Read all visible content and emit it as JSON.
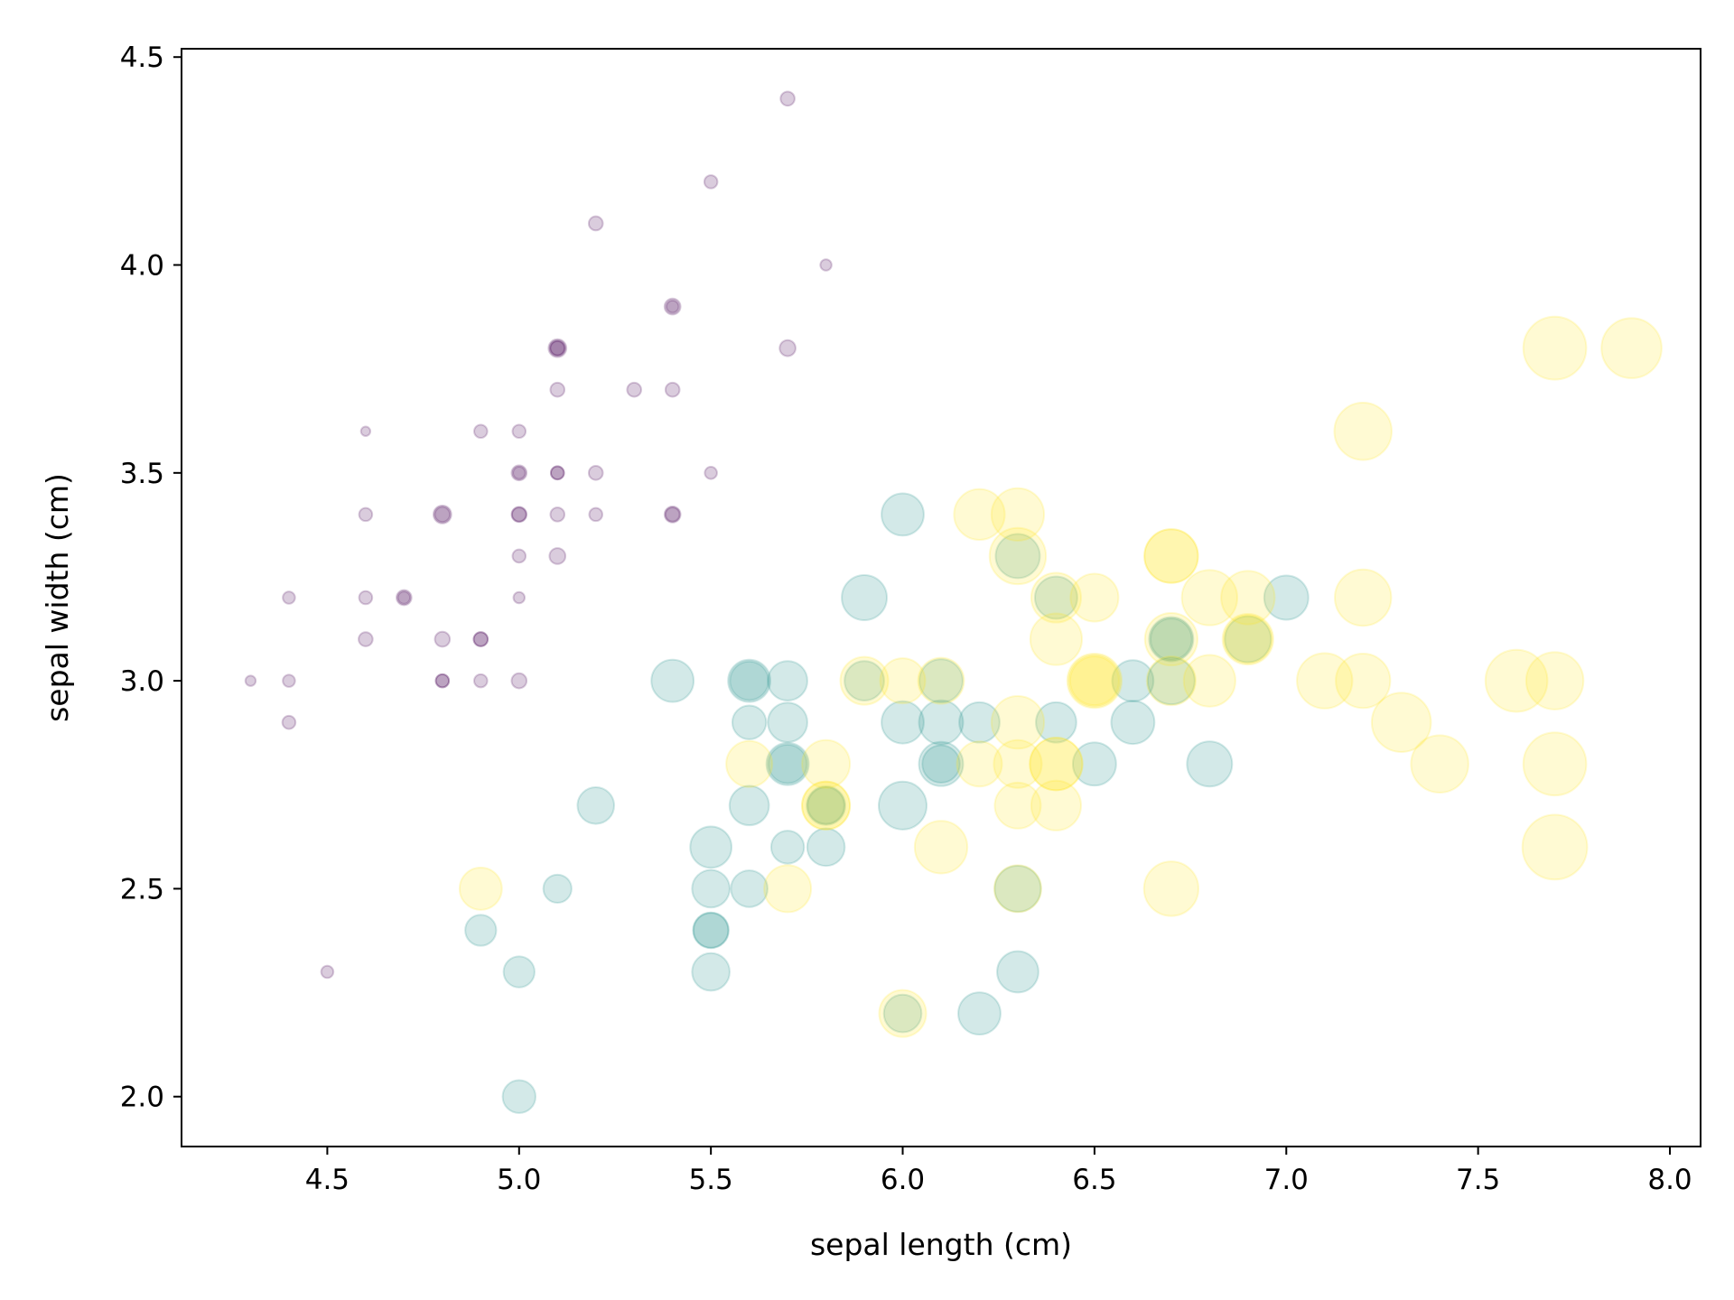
{
  "chart_data": {
    "type": "scatter",
    "title": "",
    "xlabel": "sepal length (cm)",
    "ylabel": "sepal width (cm)",
    "xlim": [
      4.12,
      8.08
    ],
    "ylim": [
      1.88,
      4.52
    ],
    "xticks": [
      "4.5",
      "5.0",
      "5.5",
      "6.0",
      "6.5",
      "7.0",
      "7.5",
      "8.0"
    ],
    "yticks": [
      "2.0",
      "2.5",
      "3.0",
      "3.5",
      "4.0",
      "4.5"
    ],
    "grid": false,
    "legend": "none",
    "marker_alpha": 0.2,
    "size_encoding": "petal length (cm)",
    "color_encoding": "species (viridis)",
    "series": [
      {
        "color": "#440154",
        "points": [
          [
            5.1,
            3.5,
            1.4
          ],
          [
            4.9,
            3.0,
            1.4
          ],
          [
            4.7,
            3.2,
            1.3
          ],
          [
            4.6,
            3.1,
            1.5
          ],
          [
            5.0,
            3.6,
            1.4
          ],
          [
            5.4,
            3.9,
            1.7
          ],
          [
            4.6,
            3.4,
            1.4
          ],
          [
            5.0,
            3.4,
            1.5
          ],
          [
            4.4,
            2.9,
            1.4
          ],
          [
            4.9,
            3.1,
            1.5
          ],
          [
            5.4,
            3.7,
            1.5
          ],
          [
            4.8,
            3.4,
            1.6
          ],
          [
            4.8,
            3.0,
            1.4
          ],
          [
            4.3,
            3.0,
            1.1
          ],
          [
            5.8,
            4.0,
            1.2
          ],
          [
            5.7,
            4.4,
            1.5
          ],
          [
            5.4,
            3.9,
            1.3
          ],
          [
            5.1,
            3.5,
            1.4
          ],
          [
            5.7,
            3.8,
            1.7
          ],
          [
            5.1,
            3.8,
            1.5
          ],
          [
            5.4,
            3.4,
            1.7
          ],
          [
            5.1,
            3.7,
            1.5
          ],
          [
            4.6,
            3.6,
            1.0
          ],
          [
            5.1,
            3.3,
            1.7
          ],
          [
            4.8,
            3.4,
            1.9
          ],
          [
            5.0,
            3.0,
            1.6
          ],
          [
            5.0,
            3.4,
            1.6
          ],
          [
            5.2,
            3.5,
            1.5
          ],
          [
            5.2,
            3.4,
            1.4
          ],
          [
            4.7,
            3.2,
            1.6
          ],
          [
            4.8,
            3.1,
            1.6
          ],
          [
            5.4,
            3.4,
            1.5
          ],
          [
            5.2,
            4.1,
            1.5
          ],
          [
            5.5,
            4.2,
            1.4
          ],
          [
            4.9,
            3.1,
            1.5
          ],
          [
            5.0,
            3.2,
            1.2
          ],
          [
            5.5,
            3.5,
            1.3
          ],
          [
            4.9,
            3.6,
            1.4
          ],
          [
            4.4,
            3.0,
            1.3
          ],
          [
            5.1,
            3.4,
            1.5
          ],
          [
            5.0,
            3.5,
            1.3
          ],
          [
            4.5,
            2.3,
            1.3
          ],
          [
            4.4,
            3.2,
            1.3
          ],
          [
            5.0,
            3.5,
            1.6
          ],
          [
            5.1,
            3.8,
            1.9
          ],
          [
            4.8,
            3.0,
            1.4
          ],
          [
            5.1,
            3.8,
            1.6
          ],
          [
            4.6,
            3.2,
            1.4
          ],
          [
            5.3,
            3.7,
            1.5
          ],
          [
            5.0,
            3.3,
            1.4
          ]
        ]
      },
      {
        "color": "#21918c",
        "points": [
          [
            7.0,
            3.2,
            4.7
          ],
          [
            6.4,
            3.2,
            4.5
          ],
          [
            6.9,
            3.1,
            4.9
          ],
          [
            5.5,
            2.3,
            4.0
          ],
          [
            6.5,
            2.8,
            4.6
          ],
          [
            5.7,
            2.8,
            4.5
          ],
          [
            6.3,
            3.3,
            4.7
          ],
          [
            4.9,
            2.4,
            3.3
          ],
          [
            6.6,
            2.9,
            4.6
          ],
          [
            5.2,
            2.7,
            3.9
          ],
          [
            5.0,
            2.0,
            3.5
          ],
          [
            5.9,
            3.0,
            4.2
          ],
          [
            6.0,
            2.2,
            4.0
          ],
          [
            6.1,
            2.9,
            4.7
          ],
          [
            5.6,
            2.9,
            3.6
          ],
          [
            6.7,
            3.1,
            4.4
          ],
          [
            5.6,
            3.0,
            4.5
          ],
          [
            5.8,
            2.7,
            4.1
          ],
          [
            6.2,
            2.2,
            4.5
          ],
          [
            5.6,
            2.5,
            3.9
          ],
          [
            5.9,
            3.2,
            4.8
          ],
          [
            6.1,
            2.8,
            4.0
          ],
          [
            6.3,
            2.5,
            4.9
          ],
          [
            6.1,
            2.8,
            4.7
          ],
          [
            6.4,
            2.9,
            4.3
          ],
          [
            6.6,
            3.0,
            4.4
          ],
          [
            6.8,
            2.8,
            4.8
          ],
          [
            6.7,
            3.0,
            5.0
          ],
          [
            6.0,
            2.9,
            4.5
          ],
          [
            5.7,
            2.6,
            3.5
          ],
          [
            5.5,
            2.4,
            3.8
          ],
          [
            5.5,
            2.4,
            3.7
          ],
          [
            5.8,
            2.7,
            3.9
          ],
          [
            6.0,
            2.7,
            5.1
          ],
          [
            5.4,
            3.0,
            4.5
          ],
          [
            6.0,
            3.4,
            4.5
          ],
          [
            6.7,
            3.1,
            4.7
          ],
          [
            6.3,
            2.3,
            4.4
          ],
          [
            5.6,
            3.0,
            4.1
          ],
          [
            5.5,
            2.5,
            4.0
          ],
          [
            5.5,
            2.6,
            4.4
          ],
          [
            6.1,
            3.0,
            4.6
          ],
          [
            5.8,
            2.6,
            4.0
          ],
          [
            5.0,
            2.3,
            3.3
          ],
          [
            5.6,
            2.7,
            4.2
          ],
          [
            5.7,
            3.0,
            4.2
          ],
          [
            5.7,
            2.9,
            4.2
          ],
          [
            6.2,
            2.9,
            4.3
          ],
          [
            5.1,
            2.5,
            3.0
          ],
          [
            5.7,
            2.8,
            4.1
          ]
        ]
      },
      {
        "color": "#fde725",
        "points": [
          [
            6.3,
            3.3,
            6.0
          ],
          [
            5.8,
            2.7,
            5.1
          ],
          [
            7.1,
            3.0,
            5.9
          ],
          [
            6.3,
            2.9,
            5.6
          ],
          [
            6.5,
            3.0,
            5.8
          ],
          [
            7.6,
            3.0,
            6.6
          ],
          [
            4.9,
            2.5,
            4.5
          ],
          [
            7.3,
            2.9,
            6.3
          ],
          [
            6.7,
            2.5,
            5.8
          ],
          [
            7.2,
            3.6,
            6.1
          ],
          [
            6.5,
            3.2,
            5.1
          ],
          [
            6.4,
            2.7,
            5.3
          ],
          [
            6.8,
            3.0,
            5.5
          ],
          [
            5.7,
            2.5,
            5.0
          ],
          [
            5.8,
            2.8,
            5.1
          ],
          [
            6.4,
            3.2,
            5.3
          ],
          [
            6.5,
            3.0,
            5.5
          ],
          [
            7.7,
            3.8,
            6.7
          ],
          [
            7.7,
            2.6,
            6.9
          ],
          [
            6.0,
            2.2,
            5.0
          ],
          [
            6.9,
            3.2,
            5.7
          ],
          [
            5.6,
            2.8,
            4.9
          ],
          [
            7.7,
            2.8,
            6.7
          ],
          [
            6.3,
            2.7,
            4.9
          ],
          [
            6.7,
            3.3,
            5.7
          ],
          [
            7.2,
            3.2,
            6.0
          ],
          [
            6.2,
            2.8,
            4.8
          ],
          [
            6.1,
            3.0,
            4.9
          ],
          [
            6.4,
            2.8,
            5.6
          ],
          [
            7.2,
            3.0,
            5.8
          ],
          [
            7.4,
            2.8,
            6.1
          ],
          [
            7.9,
            3.8,
            6.4
          ],
          [
            6.4,
            2.8,
            5.6
          ],
          [
            6.3,
            2.8,
            5.1
          ],
          [
            6.1,
            2.6,
            5.6
          ],
          [
            7.7,
            3.0,
            6.1
          ],
          [
            6.3,
            3.4,
            5.6
          ],
          [
            6.4,
            3.1,
            5.5
          ],
          [
            6.0,
            3.0,
            4.8
          ],
          [
            6.9,
            3.1,
            5.4
          ],
          [
            6.7,
            3.1,
            5.6
          ],
          [
            6.9,
            3.1,
            5.1
          ],
          [
            5.8,
            2.7,
            5.1
          ],
          [
            6.8,
            3.2,
            5.9
          ],
          [
            6.7,
            3.3,
            5.7
          ],
          [
            6.7,
            3.0,
            5.2
          ],
          [
            6.3,
            2.5,
            5.0
          ],
          [
            6.5,
            3.0,
            5.2
          ],
          [
            6.2,
            3.4,
            5.4
          ],
          [
            5.9,
            3.0,
            5.1
          ]
        ]
      }
    ]
  }
}
